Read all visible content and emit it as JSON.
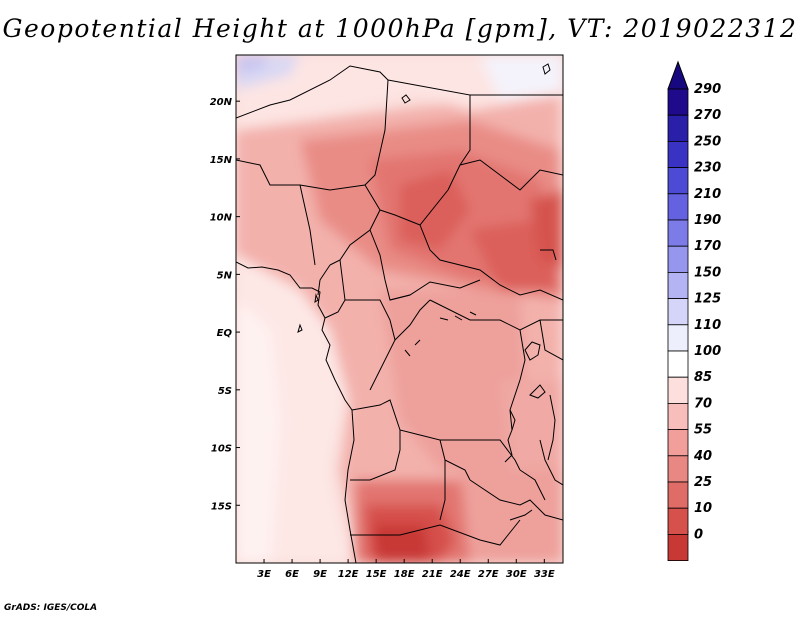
{
  "title": "Geopotential Height at 1000hPa [gpm], VT: 2019022312",
  "credit": "GrADS: IGES/COLA",
  "map": {
    "lon_range": [
      0,
      35
    ],
    "lat_range": [
      -20,
      24
    ],
    "x_ticks": [
      {
        "lon": 3,
        "label": "3E"
      },
      {
        "lon": 6,
        "label": "6E"
      },
      {
        "lon": 9,
        "label": "9E"
      },
      {
        "lon": 12,
        "label": "12E"
      },
      {
        "lon": 15,
        "label": "15E"
      },
      {
        "lon": 18,
        "label": "18E"
      },
      {
        "lon": 21,
        "label": "21E"
      },
      {
        "lon": 24,
        "label": "24E"
      },
      {
        "lon": 27,
        "label": "27E"
      },
      {
        "lon": 30,
        "label": "30E"
      },
      {
        "lon": 33,
        "label": "33E"
      }
    ],
    "y_ticks": [
      {
        "lat": 20,
        "label": "20N"
      },
      {
        "lat": 15,
        "label": "15N"
      },
      {
        "lat": 10,
        "label": "10N"
      },
      {
        "lat": 5,
        "label": "5N"
      },
      {
        "lat": 0,
        "label": "EQ"
      },
      {
        "lat": -5,
        "label": "5S"
      },
      {
        "lat": -10,
        "label": "10S"
      },
      {
        "lat": -15,
        "label": "15S"
      }
    ]
  },
  "colorbar": {
    "levels": [
      {
        "label": "290",
        "color": "#1f0a8c"
      },
      {
        "label": "270",
        "color": "#2a1fa8"
      },
      {
        "label": "250",
        "color": "#3a32c2"
      },
      {
        "label": "230",
        "color": "#4d4bd6"
      },
      {
        "label": "210",
        "color": "#6462e0"
      },
      {
        "label": "190",
        "color": "#7c7be8"
      },
      {
        "label": "170",
        "color": "#9796ee"
      },
      {
        "label": "150",
        "color": "#b4b4f4"
      },
      {
        "label": "125",
        "color": "#d4d5f8"
      },
      {
        "label": "110",
        "color": "#eeeffc"
      },
      {
        "label": "100",
        "color": "#ffffff"
      },
      {
        "label": "85",
        "color": "#fde0de"
      },
      {
        "label": "70",
        "color": "#f8bebb"
      },
      {
        "label": "55",
        "color": "#f29f9b"
      },
      {
        "label": "40",
        "color": "#e98782"
      },
      {
        "label": "25",
        "color": "#e06c68"
      },
      {
        "label": "10",
        "color": "#d6504c"
      },
      {
        "label": "0",
        "color": "#c83834"
      }
    ],
    "top_color": "#180880",
    "bottom_color": "#b02020"
  }
}
